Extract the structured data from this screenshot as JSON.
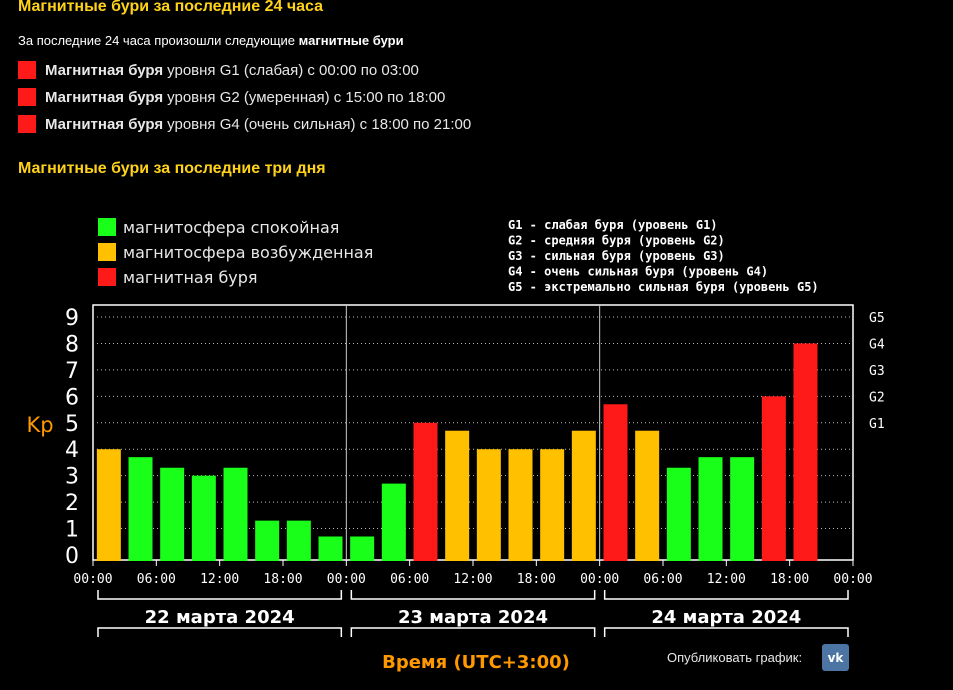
{
  "header": {
    "title": "Магнитные бури за последние 24 часа",
    "intro_prefix": "За последние 24 часа произошли следующие",
    "intro_bold": "магнитные бури"
  },
  "storms": [
    {
      "label_bold": "Магнитная буря",
      "text": "уровня G1 (слабая) с 00:00 по 03:00",
      "color": "#ff1a1a"
    },
    {
      "label_bold": "Магнитная буря",
      "text": "уровня G2 (умеренная) с 15:00 по 18:00",
      "color": "#ff1a1a"
    },
    {
      "label_bold": "Магнитная буря",
      "text": "уровня G4 (очень сильная) с 18:00 по 21:00",
      "color": "#ff1a1a"
    }
  ],
  "section_title": "Магнитные бури за последние три дня",
  "chart_data": {
    "type": "bar",
    "ylabel": "Kp",
    "xlabel": "Время (UTC+3:00)",
    "ylim": [
      0,
      9
    ],
    "yticks": [
      "0",
      "1",
      "2",
      "3",
      "4",
      "5",
      "6",
      "7",
      "8",
      "9"
    ],
    "grid": true,
    "legend": [
      {
        "label": "магнитосфера спокойная",
        "color": "#1aff1a"
      },
      {
        "label": "магнитосфера возбужденная",
        "color": "#ffc000"
      },
      {
        "label": "магнитная буря",
        "color": "#ff1a1a"
      }
    ],
    "g_legend": [
      "G1 - слабая буря (уровень G1)",
      "G2 - средняя буря (уровень G2)",
      "G3 - сильная буря (уровень G3)",
      "G4 - очень сильная буря (уровень G4)",
      "G5 - экстремально сильная буря (уровень G5)"
    ],
    "g_levels": [
      {
        "label": "G1",
        "kp": 5
      },
      {
        "label": "G2",
        "kp": 6
      },
      {
        "label": "G3",
        "kp": 7
      },
      {
        "label": "G4",
        "kp": 8
      },
      {
        "label": "G5",
        "kp": 9
      }
    ],
    "days": [
      "22 марта 2024",
      "23 марта 2024",
      "24 марта 2024"
    ],
    "xtick_labels": [
      "00:00",
      "06:00",
      "12:00",
      "18:00",
      "00:00",
      "06:00",
      "12:00",
      "18:00",
      "00:00",
      "06:00",
      "12:00",
      "18:00",
      "00:00"
    ],
    "values": [
      4.0,
      3.7,
      3.3,
      3.0,
      3.3,
      1.3,
      1.3,
      0.7,
      0.7,
      2.7,
      5.0,
      4.7,
      4.0,
      4.0,
      4.0,
      4.7,
      5.7,
      4.7,
      3.3,
      3.7,
      3.7,
      6.0,
      8.0
    ],
    "bar_colors": [
      "#ffc000",
      "#1aff1a",
      "#1aff1a",
      "#1aff1a",
      "#1aff1a",
      "#1aff1a",
      "#1aff1a",
      "#1aff1a",
      "#1aff1a",
      "#1aff1a",
      "#ff1a1a",
      "#ffc000",
      "#ffc000",
      "#ffc000",
      "#ffc000",
      "#ffc000",
      "#ff1a1a",
      "#ffc000",
      "#1aff1a",
      "#1aff1a",
      "#1aff1a",
      "#ff1a1a",
      "#ff1a1a"
    ]
  },
  "footer": {
    "publish_label": "Опубликовать график:",
    "vk_label": "vk"
  }
}
